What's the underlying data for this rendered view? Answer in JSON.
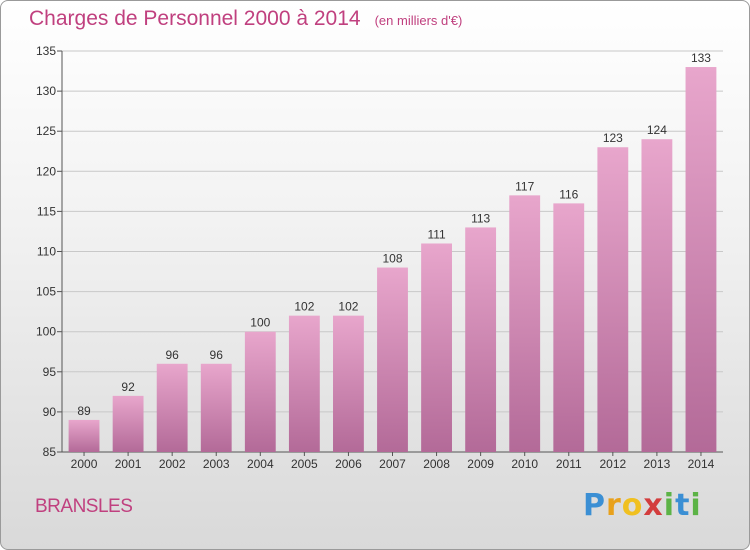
{
  "chart_data": {
    "type": "bar",
    "title": "Charges de Personnel 2000 à 2014",
    "subtitle": "(en milliers d'€)",
    "categories": [
      "2000",
      "2001",
      "2002",
      "2003",
      "2004",
      "2005",
      "2006",
      "2007",
      "2008",
      "2009",
      "2010",
      "2011",
      "2012",
      "2013",
      "2014"
    ],
    "values": [
      89,
      92,
      96,
      96,
      100,
      102,
      102,
      108,
      111,
      113,
      117,
      116,
      123,
      124,
      133
    ],
    "ylim": [
      85,
      135
    ],
    "yticks": [
      85,
      90,
      95,
      100,
      105,
      110,
      115,
      120,
      125,
      130,
      135
    ],
    "grid": true,
    "bar_color_top": "#e8a6cc",
    "bar_color_bottom": "#b36a98"
  },
  "footer": {
    "place": "BRANSLES",
    "logo": "Proxiti"
  }
}
